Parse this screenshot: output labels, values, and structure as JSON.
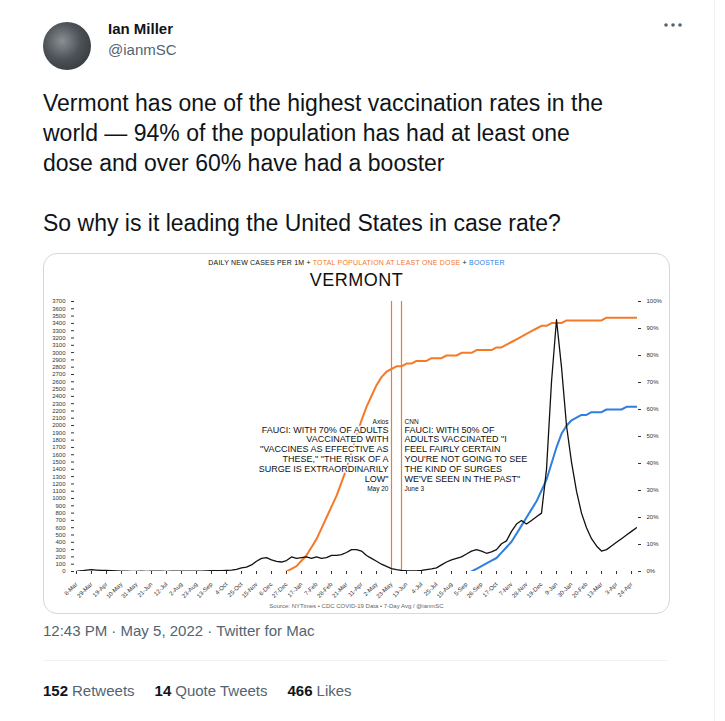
{
  "tweet": {
    "author": "Ian Miller",
    "handle": "@ianmSC",
    "paragraphs": [
      [
        "Vermont has one of the highest vaccination rates in the",
        "world — 94% of the population has had at least one",
        "dose and over 60% have had a booster"
      ],
      [
        "So why is it leading the United States in case rate?"
      ]
    ],
    "timestamp": "12:43 PM · May 5, 2022 · Twitter for Mac",
    "stats": [
      {
        "value": 152,
        "label": "Retweets"
      },
      {
        "value": 14,
        "label": "Quote Tweets"
      },
      {
        "value": 466,
        "label": "Likes"
      }
    ]
  },
  "chart_data": {
    "type": "line",
    "title": "VERMONT",
    "subtitle": "DAILY NEW CASES PER 1M + TOTAL POPULATION AT LEAST ONE DOSE + BOOSTER",
    "caption": "Source: NYTimes • CDC COVID-19 Data • 7-Day Avg / @ianmSC",
    "categories": [
      "8-Mar",
      null,
      null,
      "29-Mar",
      null,
      null,
      "19-Apr",
      null,
      null,
      "10-May",
      null,
      null,
      "31-May",
      null,
      null,
      "21-Jun",
      null,
      null,
      "12-Jul",
      null,
      null,
      "2-Aug",
      null,
      null,
      "23-Aug",
      null,
      null,
      "13-Sep",
      null,
      null,
      "4-Oct",
      null,
      null,
      "25-Oct",
      null,
      null,
      "15-Nov",
      null,
      null,
      "6-Dec",
      null,
      null,
      "27-Dec",
      null,
      null,
      "17-Jan",
      null,
      null,
      "7-Feb",
      null,
      null,
      "28-Feb",
      null,
      null,
      "21-Mar",
      null,
      null,
      "11-Apr",
      null,
      null,
      "2-May",
      null,
      null,
      "23-May",
      null,
      null,
      "13-Jun",
      null,
      null,
      "4-Jul",
      null,
      null,
      "25-Jul",
      null,
      null,
      "15-Aug",
      null,
      null,
      "5-Sep",
      null,
      null,
      "26-Sep",
      null,
      null,
      "17-Oct",
      null,
      null,
      "7-Nov",
      null,
      null,
      "28-Nov",
      null,
      null,
      "19-Dec",
      null,
      null,
      "9-Jan",
      null,
      null,
      "30-Jan",
      null,
      null,
      "20-Feb",
      null,
      null,
      "13-Mar",
      null,
      null,
      "3-Apr",
      null,
      null,
      "24-Apr",
      null
    ],
    "series": [
      {
        "name": "DAILY NEW CASES PER 1M",
        "color": "#111111",
        "values": [
          3,
          10,
          20,
          25,
          20,
          15,
          15,
          12,
          8,
          5,
          5,
          3,
          3,
          5,
          3,
          5,
          5,
          5,
          3,
          5,
          5,
          5,
          5,
          5,
          5,
          5,
          8,
          10,
          10,
          10,
          15,
          20,
          30,
          50,
          60,
          90,
          140,
          180,
          190,
          160,
          140,
          130,
          150,
          200,
          180,
          190,
          200,
          180,
          200,
          180,
          190,
          220,
          220,
          230,
          260,
          300,
          300,
          280,
          220,
          180,
          140,
          100,
          70,
          40,
          25,
          15,
          10,
          8,
          8,
          15,
          25,
          35,
          50,
          90,
          130,
          160,
          180,
          200,
          240,
          280,
          300,
          280,
          250,
          270,
          300,
          380,
          420,
          550,
          650,
          700,
          650,
          700,
          750,
          800,
          1400,
          2600,
          3450,
          2800,
          2000,
          1500,
          1100,
          800,
          600,
          450,
          350,
          280,
          300,
          350,
          400,
          450,
          500,
          550,
          600
        ]
      },
      {
        "name": "TOTAL POPULATION AT LEAST ONE DOSE",
        "color": "#f47a2a",
        "axis": "y2",
        "values": [
          null,
          null,
          null,
          null,
          null,
          null,
          null,
          null,
          null,
          null,
          null,
          null,
          null,
          null,
          null,
          null,
          null,
          null,
          null,
          null,
          null,
          null,
          null,
          null,
          null,
          null,
          null,
          null,
          null,
          null,
          null,
          null,
          null,
          null,
          null,
          null,
          null,
          null,
          null,
          null,
          null,
          null,
          0,
          1,
          2,
          4,
          6,
          9,
          12,
          16,
          20,
          24,
          28,
          33,
          38,
          44,
          50,
          56,
          61,
          65,
          69,
          72,
          74,
          75,
          76,
          76,
          77,
          77,
          78,
          78,
          78,
          79,
          79,
          79,
          80,
          80,
          80,
          81,
          81,
          81,
          82,
          82,
          82,
          82,
          83,
          83,
          84,
          85,
          86,
          87,
          88,
          89,
          90,
          91,
          91,
          92,
          92,
          92,
          93,
          93,
          93,
          93,
          93,
          93,
          93,
          93,
          94,
          94,
          94,
          94,
          94,
          94,
          94
        ]
      },
      {
        "name": "BOOSTER",
        "color": "#2e7fe0",
        "axis": "y2",
        "values": [
          null,
          null,
          null,
          null,
          null,
          null,
          null,
          null,
          null,
          null,
          null,
          null,
          null,
          null,
          null,
          null,
          null,
          null,
          null,
          null,
          null,
          null,
          null,
          null,
          null,
          null,
          null,
          null,
          null,
          null,
          null,
          null,
          null,
          null,
          null,
          null,
          null,
          null,
          null,
          null,
          null,
          null,
          null,
          null,
          null,
          null,
          null,
          null,
          null,
          null,
          null,
          null,
          null,
          null,
          null,
          null,
          null,
          null,
          null,
          null,
          null,
          null,
          null,
          null,
          null,
          null,
          null,
          null,
          null,
          null,
          null,
          null,
          null,
          null,
          null,
          null,
          null,
          null,
          null,
          0,
          1,
          2,
          3,
          4,
          5,
          7,
          9,
          11,
          14,
          17,
          20,
          23,
          26,
          30,
          34,
          40,
          46,
          51,
          54,
          56,
          57,
          58,
          58,
          59,
          59,
          59,
          60,
          60,
          60,
          60,
          61,
          61,
          61
        ]
      }
    ],
    "ylim": [
      0,
      3700
    ],
    "yticks": [
      0,
      100,
      200,
      300,
      400,
      500,
      600,
      700,
      800,
      900,
      1000,
      1100,
      1200,
      1300,
      1400,
      1500,
      1600,
      1700,
      1800,
      1900,
      2000,
      2100,
      2200,
      2300,
      2400,
      2500,
      2600,
      2700,
      2800,
      2900,
      3000,
      3100,
      3200,
      3300,
      3400,
      3500,
      3600,
      3700
    ],
    "y2lim": [
      0,
      100
    ],
    "y2ticks": [
      {
        "value": 0,
        "label": "0%"
      },
      {
        "value": 10,
        "label": "10%"
      },
      {
        "value": 20,
        "label": "20%"
      },
      {
        "value": 30,
        "label": "30%"
      },
      {
        "value": 40,
        "label": "40%"
      },
      {
        "value": 50,
        "label": "50%"
      },
      {
        "value": 60,
        "label": "60%"
      },
      {
        "value": 70,
        "label": "70%"
      },
      {
        "value": 80,
        "label": "80%"
      },
      {
        "value": 90,
        "label": "90%"
      },
      {
        "value": 100,
        "label": "100%"
      }
    ],
    "grid": false,
    "annotations": [
      {
        "source": "Axios",
        "date": "May 20",
        "x": 63,
        "color": "#f47a2a",
        "lines": [
          "FAUCI: WITH 70% OF ADULTS",
          "VACCINATED WITH",
          "\"VACCINES AS EFFECTIVE AS",
          "THESE,\" \"THE RISK OF A",
          "SURGE IS EXTRAORDINARILY",
          "LOW\""
        ]
      },
      {
        "source": "CNN",
        "date": "June 3",
        "x": 65,
        "color": "#f47a2a",
        "lines": [
          "FAUCI: WITH 50% OF",
          "ADULTS VACCINATED \"I",
          "FEEL FAIRLY CERTAIN",
          "YOU'RE NOT GOING TO SEE",
          "THE KIND OF SURGES",
          "WE'VE SEEN IN THE PAST\""
        ]
      }
    ]
  }
}
